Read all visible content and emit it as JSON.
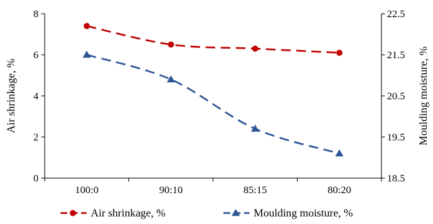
{
  "chart_data": {
    "type": "line",
    "categories": [
      "100:0",
      "90:10",
      "85:15",
      "80:20"
    ],
    "series": [
      {
        "name": "Air shrinkage, %",
        "axis": "left",
        "values": [
          7.4,
          6.5,
          6.3,
          6.1
        ],
        "color": "#c00000",
        "marker": "circle",
        "line_style": "dashed"
      },
      {
        "name": "Moulding moisture, %",
        "axis": "right",
        "values": [
          21.5,
          20.9,
          19.7,
          19.1
        ],
        "color": "#2e5597",
        "marker": "triangle",
        "line_style": "dashed"
      }
    ],
    "ylabel": "Air shrinkage, %",
    "y2label": "Moulding moisture, %",
    "ylim": [
      0,
      8
    ],
    "yticks": [
      "0",
      "2",
      "4",
      "6",
      "8"
    ],
    "y2lim": [
      18.5,
      22.5
    ],
    "y2ticks": [
      "18.5",
      "19.5",
      "20.5",
      "21.5",
      "22.5"
    ],
    "grid": false,
    "legend_position": "bottom"
  }
}
